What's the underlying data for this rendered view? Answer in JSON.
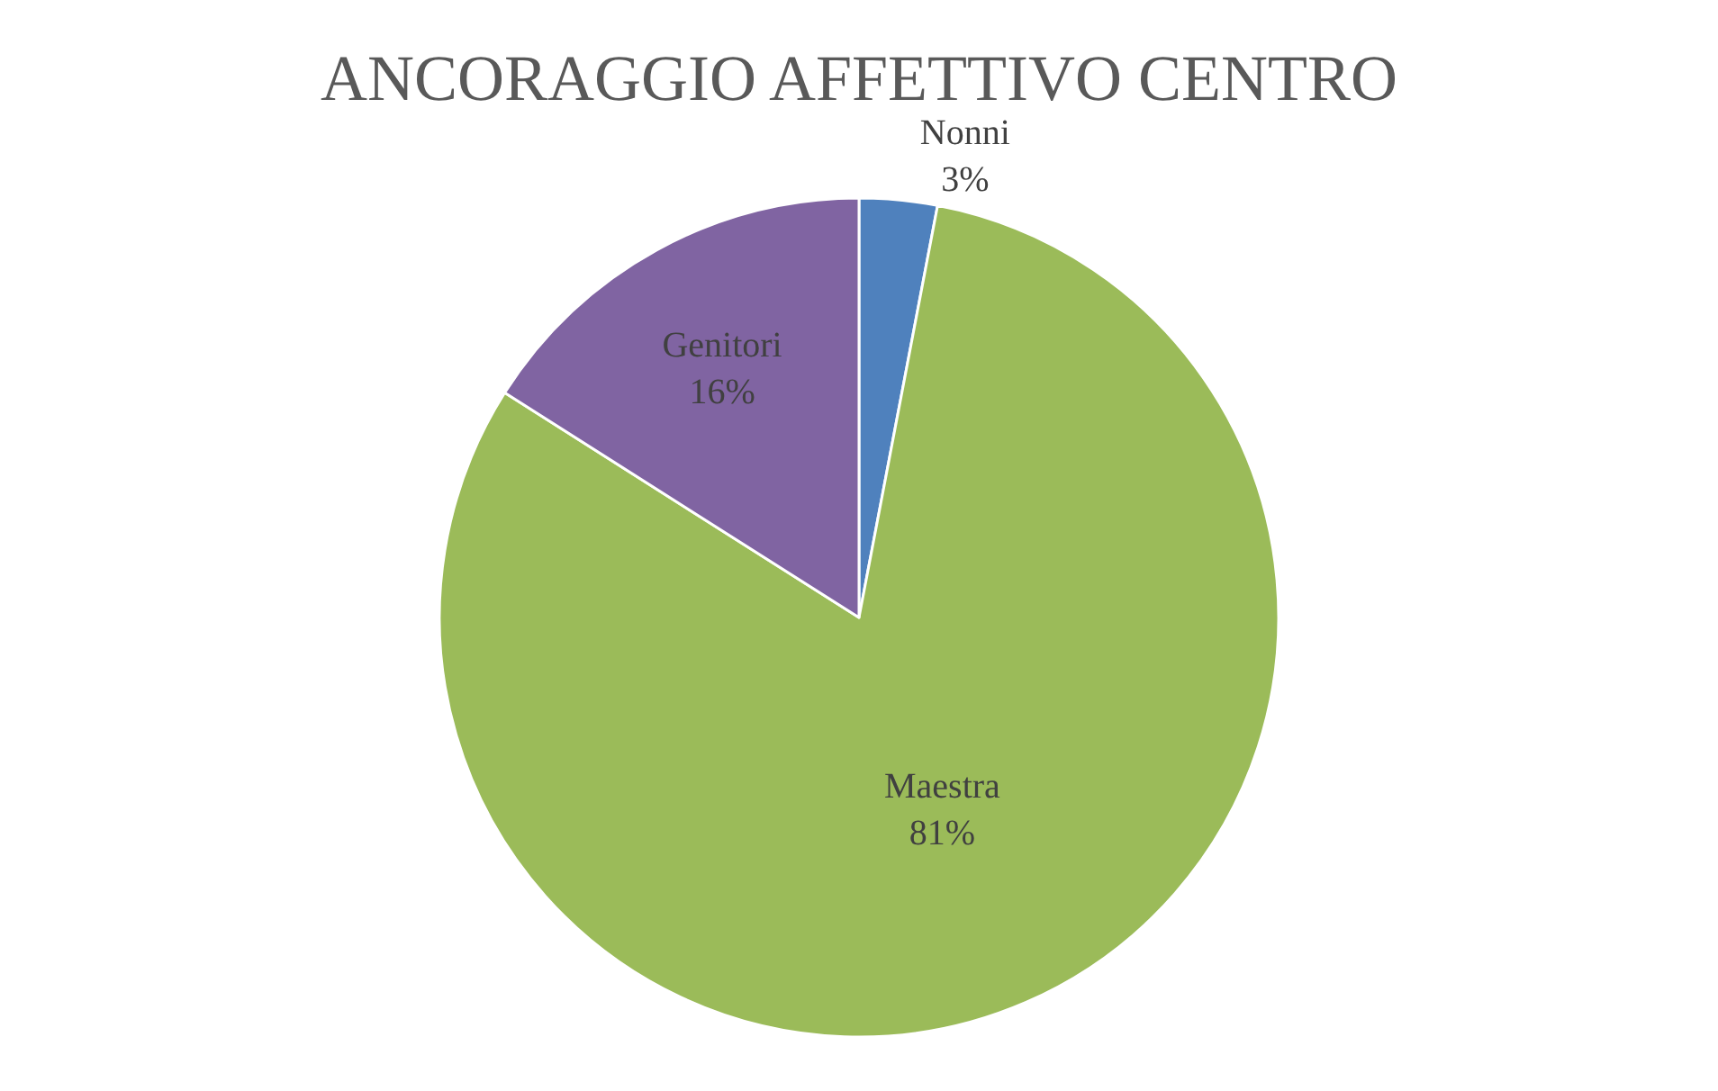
{
  "chart_data": {
    "type": "pie",
    "title": "ANCORAGGIO AFFETTIVO CENTRO",
    "categories": [
      "Nonni",
      "Maestra",
      "Genitori"
    ],
    "values": [
      3,
      81,
      16
    ],
    "value_labels": [
      "3%",
      "81%",
      "16%"
    ],
    "colors": [
      "#4f81bd",
      "#9bbb59",
      "#8064a2"
    ]
  }
}
